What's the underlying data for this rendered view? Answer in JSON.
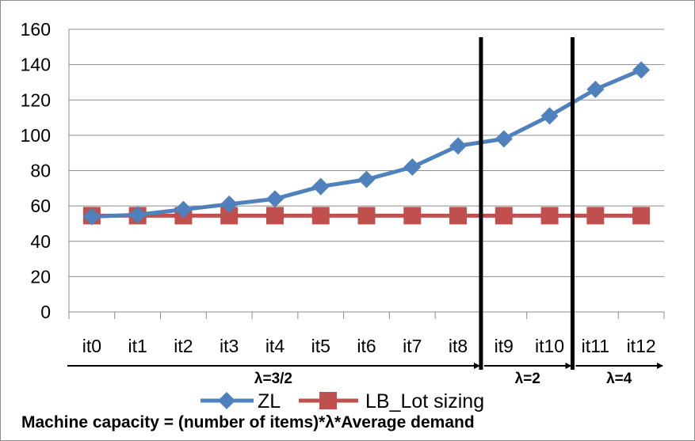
{
  "chart_data": {
    "type": "line",
    "categories": [
      "it0",
      "it1",
      "it2",
      "it3",
      "it4",
      "it5",
      "it6",
      "it7",
      "it8",
      "it9",
      "it10",
      "it11",
      "it12"
    ],
    "series": [
      {
        "name": "ZL",
        "color": "#4f81bd",
        "marker": "diamond",
        "values": [
          54,
          55,
          58,
          61,
          64,
          71,
          75,
          82,
          94,
          98,
          111,
          126,
          137
        ]
      },
      {
        "name": "LB_Lot sizing",
        "color": "#c0504d",
        "marker": "square",
        "values": [
          54.5,
          54.5,
          54.5,
          54.5,
          54.5,
          54.5,
          54.5,
          54.5,
          54.5,
          54.5,
          54.5,
          54.5,
          54.5
        ]
      }
    ],
    "ylim": [
      0,
      160
    ],
    "yticks": [
      0,
      20,
      40,
      60,
      80,
      100,
      120,
      140,
      160
    ],
    "grid": true,
    "legend_position": "bottom",
    "regions": [
      {
        "label": "λ=3/2",
        "from": "it0",
        "to": "it8"
      },
      {
        "label": "λ=2",
        "from": "it9",
        "to": "it10"
      },
      {
        "label": "λ=4",
        "from": "it11",
        "to": "it12"
      }
    ],
    "dividers_after": [
      "it8",
      "it10"
    ]
  },
  "caption": "Machine capacity = (number of items)*λ*Average demand"
}
